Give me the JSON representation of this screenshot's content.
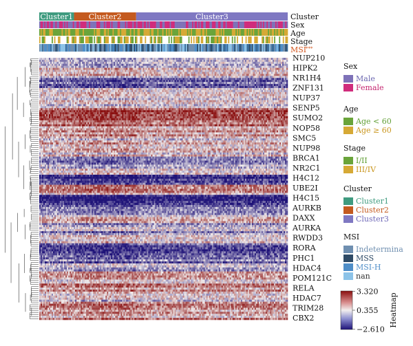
{
  "chart_data": {
    "type": "heatmap",
    "clusters": [
      {
        "label": "Cluster1",
        "color": "#3f9b7f",
        "fraction": 0.14
      },
      {
        "label": "Cluster2",
        "color": "#c45a1f",
        "fraction": 0.25
      },
      {
        "label": "Cluster3",
        "color": "#7f78c2",
        "fraction": 0.61
      }
    ],
    "annotation_rows": [
      "Cluster",
      "Sex",
      "Age",
      "Stage",
      "MSI",
      "***"
    ],
    "genes": [
      {
        "name": "NUP210",
        "mean": 0.3
      },
      {
        "name": "HIPK2",
        "mean": 0.5
      },
      {
        "name": "NR1H4",
        "mean": -1.4
      },
      {
        "name": "ZNF131",
        "mean": 0.2
      },
      {
        "name": "NUP37",
        "mean": 0.4
      },
      {
        "name": "SENP5",
        "mean": 1.9
      },
      {
        "name": "SUMO2",
        "mean": 2.0
      },
      {
        "name": "NOP58",
        "mean": 0.8
      },
      {
        "name": "SMC5",
        "mean": 0.6
      },
      {
        "name": "NUP98",
        "mean": 0.7
      },
      {
        "name": "BRCA1",
        "mean": -0.4
      },
      {
        "name": "NR2C1",
        "mean": 0.3
      },
      {
        "name": "H4C12",
        "mean": -1.9
      },
      {
        "name": "UBE2I",
        "mean": 1.2
      },
      {
        "name": "H4C15",
        "mean": -2.4
      },
      {
        "name": "AURKB",
        "mean": -1.0
      },
      {
        "name": "DAXX",
        "mean": 0.8
      },
      {
        "name": "AURKA",
        "mean": -0.5
      },
      {
        "name": "RWDD3",
        "mean": 0.2
      },
      {
        "name": "RORA",
        "mean": -1.8
      },
      {
        "name": "PHC1",
        "mean": -1.2
      },
      {
        "name": "HDAC4",
        "mean": -0.3
      },
      {
        "name": "POM121C",
        "mean": 0.9
      },
      {
        "name": "RELA",
        "mean": 1.1
      },
      {
        "name": "HDAC7",
        "mean": 0.5
      },
      {
        "name": "TRIM28",
        "mean": 1.6
      },
      {
        "name": "CBX2",
        "mean": 1.3
      }
    ],
    "colorbar": {
      "max": "3.320",
      "mid": "0.355",
      "min": "−2.610",
      "label": "Heatmap",
      "high_color": "#8a0f0f",
      "mid_color": "#f2eeee",
      "low_color": "#1e1278"
    },
    "legends": [
      {
        "title": "Sex",
        "items": [
          {
            "label": "Male",
            "color": "#7e72b8"
          },
          {
            "label": "Female",
            "color": "#d02c7c"
          }
        ]
      },
      {
        "title": "Age",
        "items": [
          {
            "label": "Age < 60",
            "color": "#6aa43a"
          },
          {
            "label": "Age ≥ 60",
            "color": "#d6a935"
          }
        ]
      },
      {
        "title": "Stage",
        "items": [
          {
            "label": "I/II",
            "color": "#6aa43a"
          },
          {
            "label": "III/IV",
            "color": "#d6a935"
          }
        ]
      },
      {
        "title": "Cluster",
        "items": [
          {
            "label": "Cluster1",
            "color": "#3f9b7f"
          },
          {
            "label": "Cluster2",
            "color": "#c45a1f"
          },
          {
            "label": "Cluster3",
            "color": "#7f78c2"
          }
        ]
      },
      {
        "title": "MSI",
        "items": [
          {
            "label": "Indetermina",
            "color": "#6f8fb0"
          },
          {
            "label": "MSS",
            "color": "#2e4a66"
          },
          {
            "label": "MSI-H",
            "color": "#4f8ec8"
          },
          {
            "label": "nan",
            "color": "#8cc3e8"
          }
        ]
      }
    ],
    "legend_text_colors": {
      "Male": "#6b66b0",
      "Female": "#c4256f",
      "Age < 60": "#5f9e34",
      "Age ≥ 60": "#c9951c",
      "I/II": "#5f9e34",
      "III/IV": "#c9951c",
      "Cluster1": "#3f9b7f",
      "Cluster2": "#c45a1f",
      "Cluster3": "#6f68b8",
      "Indetermina": "#6f8fb0",
      "MSS": "#2e4a66",
      "MSI-H": "#4f8ec8",
      "nan": "#333333"
    }
  }
}
